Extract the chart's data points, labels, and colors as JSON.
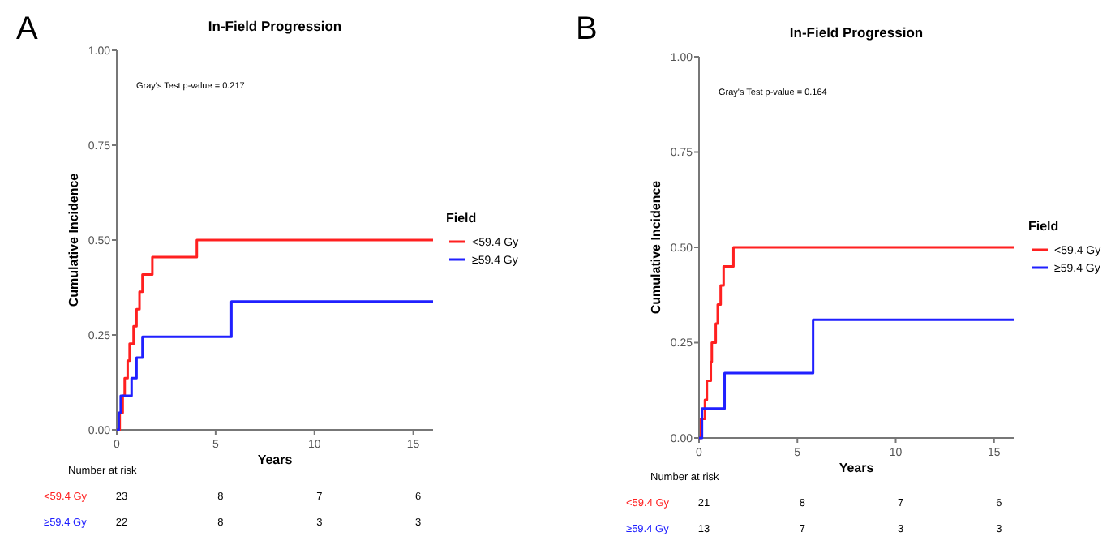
{
  "chart_data": [
    {
      "type": "step",
      "title": "In-Field Progression",
      "xlabel": "Years",
      "ylabel": "Cumulative Incidence",
      "legend_title": "Field",
      "legend": "right",
      "grid": false,
      "xlim": [
        0,
        16
      ],
      "xticks": [
        0,
        5,
        10,
        15
      ],
      "ylim": [
        0,
        1
      ],
      "yticks": [
        {
          "value": 0,
          "label": "0.00"
        },
        {
          "value": 0.25,
          "label": "0.25"
        },
        {
          "value": 0.5,
          "label": "0.50"
        },
        {
          "value": 0.75,
          "label": "0.75"
        },
        {
          "value": 1,
          "label": "1.00"
        }
      ],
      "annotations": [
        "A",
        "Gray's Test p-value = 0.217",
        "Number at risk",
        "<59.4  Gy",
        "23",
        "8",
        "7",
        "6",
        "≥59.4  Gy",
        "22",
        "8",
        "3",
        "3"
      ],
      "series": [
        {
          "name": "<59.4 Gy",
          "color": "#ff2020",
          "x": [
            0,
            0.15,
            0.3,
            0.4,
            0.55,
            0.65,
            0.85,
            1.0,
            1.15,
            1.3,
            1.8,
            4.05,
            16
          ],
          "values": [
            0,
            0.045,
            0.09,
            0.136,
            0.182,
            0.227,
            0.273,
            0.318,
            0.364,
            0.409,
            0.455,
            0.5,
            0.5
          ]
        },
        {
          "name": "≥59.4 Gy",
          "color": "#2020ff",
          "x": [
            0,
            0.1,
            0.2,
            0.75,
            1.0,
            1.3,
            5.8,
            16
          ],
          "values": [
            0,
            0.045,
            0.09,
            0.136,
            0.19,
            0.245,
            0.338,
            0.338
          ]
        }
      ]
    },
    {
      "type": "step",
      "title": "In-Field Progression",
      "xlabel": "Years",
      "ylabel": "Cumulative Incidence",
      "legend_title": "Field",
      "legend": "right",
      "grid": false,
      "xlim": [
        0,
        16
      ],
      "xticks": [
        0,
        5,
        10,
        15
      ],
      "ylim": [
        0,
        1
      ],
      "yticks": [
        {
          "value": 0,
          "label": "0.00"
        },
        {
          "value": 0.25,
          "label": "0.25"
        },
        {
          "value": 0.5,
          "label": "0.50"
        },
        {
          "value": 0.75,
          "label": "0.75"
        },
        {
          "value": 1,
          "label": "1.00"
        }
      ],
      "annotations": [
        "B",
        "Gray's Test p-value = 0.164",
        "Number at risk",
        "<59.4  Gy",
        "21",
        "8",
        "7",
        "6",
        "≥59.4  Gy",
        "13",
        "7",
        "3",
        "3"
      ],
      "series": [
        {
          "name": "<59.4 Gy",
          "color": "#ff2020",
          "x": [
            0,
            0.1,
            0.3,
            0.4,
            0.6,
            0.65,
            0.85,
            0.95,
            1.1,
            1.25,
            1.75,
            16
          ],
          "values": [
            0,
            0.05,
            0.1,
            0.15,
            0.2,
            0.25,
            0.3,
            0.35,
            0.4,
            0.45,
            0.5,
            0.5
          ]
        },
        {
          "name": "≥59.4 Gy",
          "color": "#2020ff",
          "x": [
            0,
            0.15,
            1.3,
            5.8,
            16
          ],
          "values": [
            0,
            0.077,
            0.17,
            0.31,
            0.31
          ]
        }
      ]
    }
  ]
}
